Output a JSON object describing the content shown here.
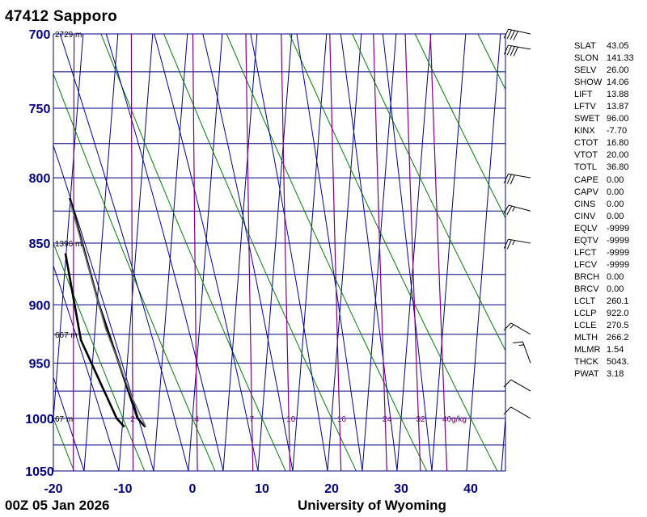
{
  "header": {
    "station": "47412  Sapporo",
    "time": "00Z 05 Jan 2026",
    "credit": "University of Wyoming"
  },
  "chart_data": {
    "type": "line",
    "title": "47412  Sapporo",
    "x_axis": {
      "ticks": [
        -20,
        -10,
        0,
        10,
        20,
        30,
        40
      ],
      "range": [
        -20,
        45
      ],
      "unit": "°C"
    },
    "y_axis": {
      "ticks": [
        700,
        750,
        800,
        850,
        900,
        950,
        1000,
        1050
      ],
      "range": [
        700,
        1050
      ],
      "scale": "log-pressure",
      "unit": "hPa"
    },
    "height_labels": [
      {
        "text": "2729 m",
        "p": 700
      },
      {
        "text": "1396 m",
        "p": 850
      },
      {
        "text": "667 m",
        "p": 925
      },
      {
        "text": "67 m",
        "p": 1000
      }
    ],
    "mixing_ratio_labels": [
      "2",
      "4",
      "7",
      "10",
      "16",
      "24",
      "32",
      "40g/kg"
    ],
    "series": [
      {
        "role": "temperature",
        "color": "#000000",
        "points": [
          [
            -6.7,
            1008
          ],
          [
            -7.9,
            1000
          ],
          [
            -14.7,
            900
          ],
          [
            -20.1,
            815
          ]
        ]
      },
      {
        "role": "dewpoint",
        "color": "#000000",
        "points": [
          [
            -9.7,
            1008
          ],
          [
            -10.9,
            1000
          ],
          [
            -16.9,
            930
          ],
          [
            -20.1,
            858
          ]
        ]
      },
      {
        "role": "parcel",
        "color": "#707070",
        "points": [
          [
            -6.6,
            1008
          ],
          [
            -9.0,
            980
          ],
          [
            -13.5,
            920
          ],
          [
            -20.0,
            818
          ]
        ]
      }
    ],
    "wind_barbs": [
      {
        "p": 1000,
        "dir": 300,
        "spd": 10
      },
      {
        "p": 975,
        "dir": 300,
        "spd": 10
      },
      {
        "p": 950,
        "dir": 340,
        "spd": 15
      },
      {
        "p": 925,
        "dir": 300,
        "spd": 15
      },
      {
        "p": 850,
        "dir": 280,
        "spd": 25
      },
      {
        "p": 825,
        "dir": 285,
        "spd": 25
      },
      {
        "p": 800,
        "dir": 280,
        "spd": 30
      },
      {
        "p": 710,
        "dir": 280,
        "spd": 40
      },
      {
        "p": 700,
        "dir": 282,
        "spd": 40
      }
    ],
    "grid": true
  },
  "indices": [
    {
      "k": "SLAT",
      "v": "43.05"
    },
    {
      "k": "SLON",
      "v": "141.33"
    },
    {
      "k": "SELV",
      "v": "26.00"
    },
    {
      "k": "SHOW",
      "v": "14.06"
    },
    {
      "k": "LIFT",
      "v": "13.88"
    },
    {
      "k": "LFTV",
      "v": "13.87"
    },
    {
      "k": "SWET",
      "v": "96.00"
    },
    {
      "k": "KINX",
      "v": "-7.70"
    },
    {
      "k": "CTOT",
      "v": "16.80"
    },
    {
      "k": "VTOT",
      "v": "20.00"
    },
    {
      "k": "TOTL",
      "v": "36.80"
    },
    {
      "k": "CAPE",
      "v": "0.00"
    },
    {
      "k": "CAPV",
      "v": "0.00"
    },
    {
      "k": "CINS",
      "v": "0.00"
    },
    {
      "k": "CINV",
      "v": "0.00"
    },
    {
      "k": "EQLV",
      "v": "-9999"
    },
    {
      "k": "EQTV",
      "v": "-9999"
    },
    {
      "k": "LFCT",
      "v": "-9999"
    },
    {
      "k": "LFCV",
      "v": "-9999"
    },
    {
      "k": "BRCH",
      "v": "0.00"
    },
    {
      "k": "BRCV",
      "v": "0.00"
    },
    {
      "k": "LCLT",
      "v": "260.1"
    },
    {
      "k": "LCLP",
      "v": "922.0"
    },
    {
      "k": "LCLE",
      "v": "270.5"
    },
    {
      "k": "MLTH",
      "v": "266.2"
    },
    {
      "k": "MLMR",
      "v": "1.54"
    },
    {
      "k": "THCK",
      "v": "5043."
    },
    {
      "k": "PWAT",
      "v": "3.18"
    }
  ],
  "colors": {
    "frame": "#000080",
    "axis_text": "#000080",
    "isotherm": "#000080",
    "dry_adiabat": "#008000",
    "moist_adiabat": "#0000a0",
    "mixing_ratio": "#800080"
  }
}
